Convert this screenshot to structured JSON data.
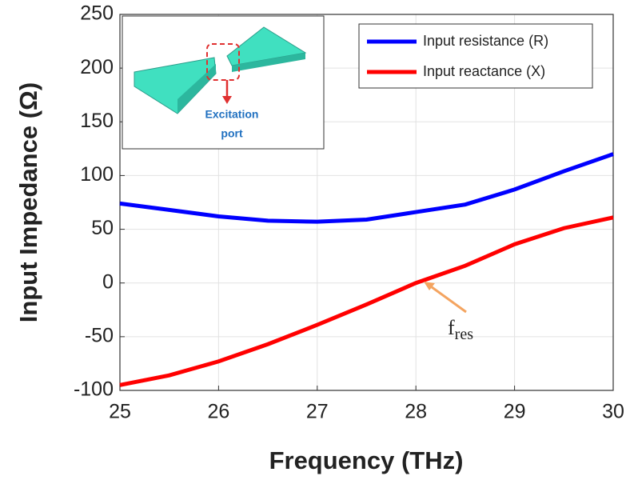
{
  "chart_data": {
    "type": "line",
    "x": [
      25,
      25.5,
      26,
      26.5,
      27,
      27.5,
      28,
      28.5,
      29,
      29.5,
      30
    ],
    "series": [
      {
        "name": "Input resistance (R)",
        "color": "#0000ff",
        "values": [
          74,
          68,
          62,
          58,
          57,
          59,
          66,
          73,
          87,
          104,
          120
        ]
      },
      {
        "name": "Input reactance (X)",
        "color": "#ff0000",
        "values": [
          -95,
          -86,
          -73,
          -57,
          -39,
          -20,
          0,
          16,
          36,
          51,
          61
        ]
      }
    ],
    "xlabel": "Frequency (THz)",
    "ylabel": "Input Impedance (Ω)",
    "xlim": [
      25,
      30
    ],
    "xticks": [
      25,
      26,
      27,
      28,
      29,
      30
    ],
    "ylim": [
      -100,
      250
    ],
    "yticks": [
      -100,
      -50,
      0,
      50,
      100,
      150,
      200,
      250
    ],
    "grid": true,
    "legend": "upper right",
    "annotation": {
      "text": "f",
      "subscript": "res"
    },
    "inset": {
      "label": [
        "Excitation",
        "port"
      ]
    }
  }
}
